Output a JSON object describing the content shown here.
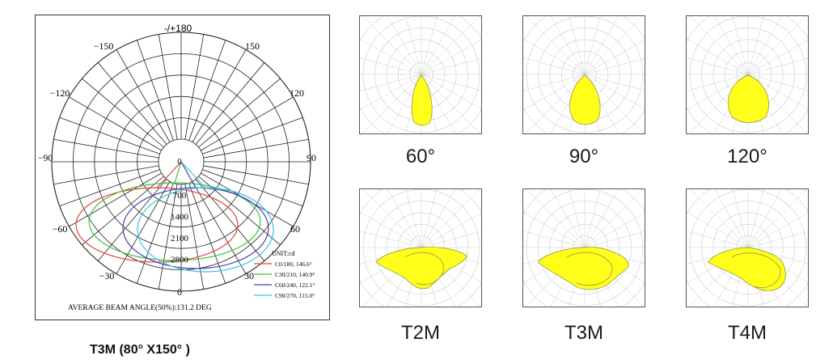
{
  "main_chart": {
    "top_label": "-/+180",
    "angle_labels": {
      "m150": "−150",
      "p150": "150",
      "m120": "−120",
      "p120": "120",
      "m90": "−90",
      "p90": "90",
      "m60": "−60",
      "p60": "60",
      "m30": "−30",
      "p30": "30",
      "zero": "0"
    },
    "radial_labels": [
      "0",
      "700",
      "1400",
      "2100",
      "2800"
    ],
    "unit": "UNIT:cd",
    "legend": [
      {
        "label": "C0/180, 146.6°",
        "color": "#e8423c"
      },
      {
        "label": "C30/210, 140.9°",
        "color": "#3cc23c"
      },
      {
        "label": "C60/240, 122.1°",
        "color": "#4a3fb8"
      },
      {
        "label": "C90/270, 115.0°",
        "color": "#36c4e6"
      }
    ],
    "beam_angle_text": "AVERAGE BEAM ANGLE(50%):131.2 DEG",
    "caption": "T3M (80°  X150° )"
  },
  "thumbnails": [
    {
      "label": "60°",
      "shape": "narrow"
    },
    {
      "label": "90°",
      "shape": "medium"
    },
    {
      "label": "120°",
      "shape": "wide"
    },
    {
      "label": "T2M",
      "shape": "t2m"
    },
    {
      "label": "T3M",
      "shape": "t3m"
    },
    {
      "label": "T4M",
      "shape": "t4m"
    }
  ],
  "colors": {
    "fill": "#ffff1a",
    "grid": "#cccccc"
  }
}
